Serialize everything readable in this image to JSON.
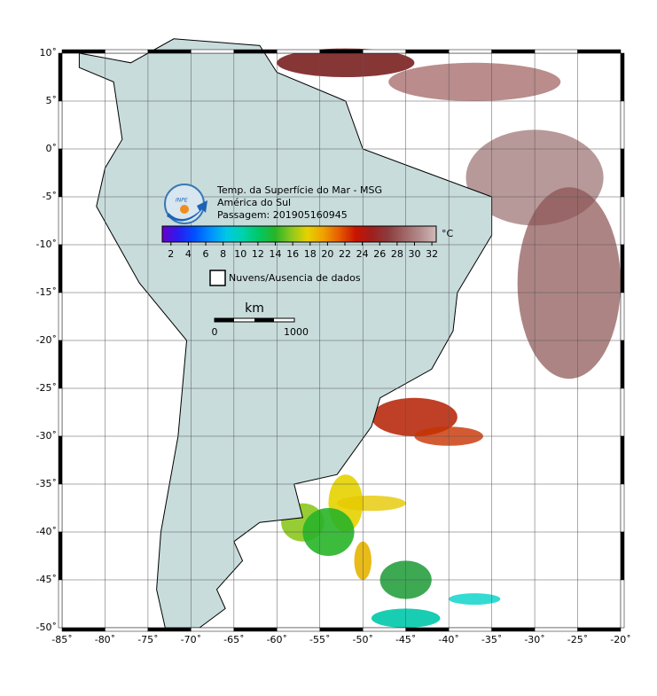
{
  "map": {
    "title_lines": [
      "Temp. da Superfície do Mar - MSG",
      "América do Sul",
      "Passagem: 201905160945"
    ],
    "logo_text": "INPE",
    "lon_lim": [
      -85,
      -20
    ],
    "lat_lim": [
      -50,
      10
    ],
    "lon_ticks": [
      {
        "value": -85,
        "label": "-85˚"
      },
      {
        "value": -80,
        "label": "-80˚"
      },
      {
        "value": -75,
        "label": "-75˚"
      },
      {
        "value": -70,
        "label": "-70˚"
      },
      {
        "value": -65,
        "label": "-65˚"
      },
      {
        "value": -60,
        "label": "-60˚"
      },
      {
        "value": -55,
        "label": "-55˚"
      },
      {
        "value": -50,
        "label": "-50˚"
      },
      {
        "value": -45,
        "label": "-45˚"
      },
      {
        "value": -40,
        "label": "-40˚"
      },
      {
        "value": -35,
        "label": "-35˚"
      },
      {
        "value": -30,
        "label": "-30˚"
      },
      {
        "value": -25,
        "label": "-25˚"
      },
      {
        "value": -20,
        "label": "-20˚"
      }
    ],
    "lat_ticks": [
      {
        "value": 10,
        "label": "10˚"
      },
      {
        "value": 5,
        "label": "5˚"
      },
      {
        "value": 0,
        "label": "0˚"
      },
      {
        "value": -5,
        "label": "-5˚"
      },
      {
        "value": -10,
        "label": "-10˚"
      },
      {
        "value": -15,
        "label": "-15˚"
      },
      {
        "value": -20,
        "label": "-20˚"
      },
      {
        "value": -25,
        "label": "-25˚"
      },
      {
        "value": -30,
        "label": "-30˚"
      },
      {
        "value": -35,
        "label": "-35˚"
      },
      {
        "value": -40,
        "label": "-40˚"
      },
      {
        "value": -45,
        "label": "-45˚"
      },
      {
        "value": -50,
        "label": "-50˚"
      }
    ],
    "colorbar": {
      "unit": "°C",
      "lim": [
        1,
        32.5
      ],
      "ticks": [
        2,
        4,
        6,
        8,
        10,
        12,
        14,
        16,
        18,
        20,
        22,
        24,
        26,
        28,
        30,
        32
      ],
      "colors": [
        "#6a00c8",
        "#2a1cf0",
        "#0050ff",
        "#0090ff",
        "#00c8e6",
        "#00d2aa",
        "#00c864",
        "#28b428",
        "#8cc81e",
        "#e6d200",
        "#f0a000",
        "#e65a00",
        "#c81400",
        "#a01e1e",
        "#8c3c3c",
        "#9e6464",
        "#b48c8c",
        "#d2b9b9"
      ]
    },
    "legend": "Nuvens/Ausencia de dados",
    "scale": {
      "unit": "km",
      "start": "0",
      "end": "1000"
    }
  }
}
